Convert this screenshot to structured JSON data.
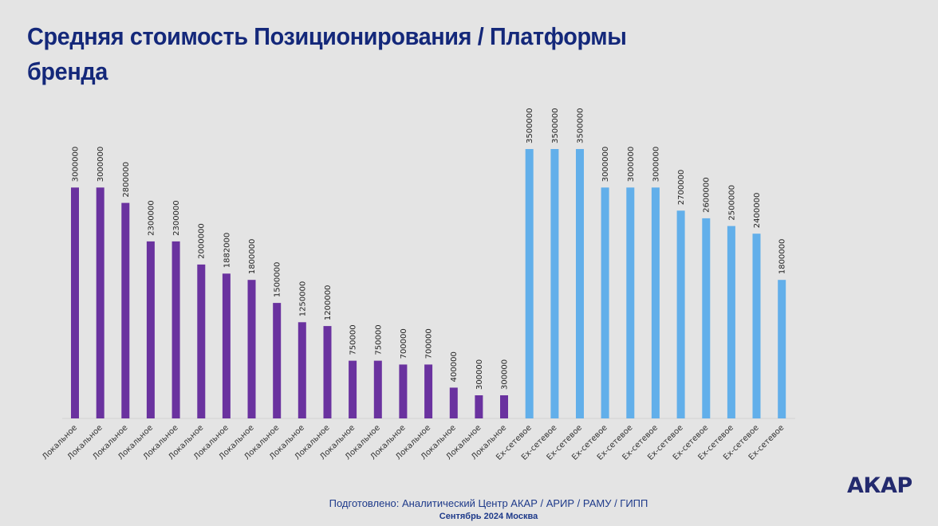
{
  "header": {
    "title_line1": "Средняя стоимость Позиционирования / Платформы",
    "title_line2": "бренда"
  },
  "footer": {
    "prepared_by": "Подготовлено: Аналитический Центр АКАР / АРИР / РАМУ / ГИПП",
    "date_place": "Сентябрь 2024 Москва",
    "logo": "АКАР"
  },
  "colors": {
    "title": "#14287a",
    "local_bar": "#6a329f",
    "network_bar": "#62afea",
    "background": "#e4e4e4"
  },
  "chart_data": {
    "type": "bar",
    "title": "Средняя стоимость Позиционирования / Платформы бренда",
    "xlabel": "",
    "ylabel": "",
    "ylim": [
      0,
      3500000
    ],
    "grid": false,
    "legend": "none",
    "categories": [
      "Локальное",
      "Локальное",
      "Локальное",
      "Локальное",
      "Локальное",
      "Локальное",
      "Локальное",
      "Локальное",
      "Локальное",
      "Локальное",
      "Локальное",
      "Локальное",
      "Локальное",
      "Локальное",
      "Локальное",
      "Локальное",
      "Локальное",
      "Локальное",
      "Ex-сетевое",
      "Ex-сетевое",
      "Ex-сетевое",
      "Ex-сетевое",
      "Ex-сетевое",
      "Ex-сетевое",
      "Ex-сетевое",
      "Ex-сетевое",
      "Ex-сетевое",
      "Ex-сетевое",
      "Ex-сетевое"
    ],
    "values": [
      3000000,
      3000000,
      2800000,
      2300000,
      2300000,
      2000000,
      1882000,
      1800000,
      1500000,
      1250000,
      1200000,
      750000,
      750000,
      700000,
      700000,
      400000,
      300000,
      300000,
      3500000,
      3500000,
      3500000,
      3000000,
      3000000,
      3000000,
      2700000,
      2600000,
      2500000,
      2400000,
      1800000
    ],
    "groups": [
      "local",
      "local",
      "local",
      "local",
      "local",
      "local",
      "local",
      "local",
      "local",
      "local",
      "local",
      "local",
      "local",
      "local",
      "local",
      "local",
      "local",
      "local",
      "network",
      "network",
      "network",
      "network",
      "network",
      "network",
      "network",
      "network",
      "network",
      "network",
      "network"
    ]
  }
}
